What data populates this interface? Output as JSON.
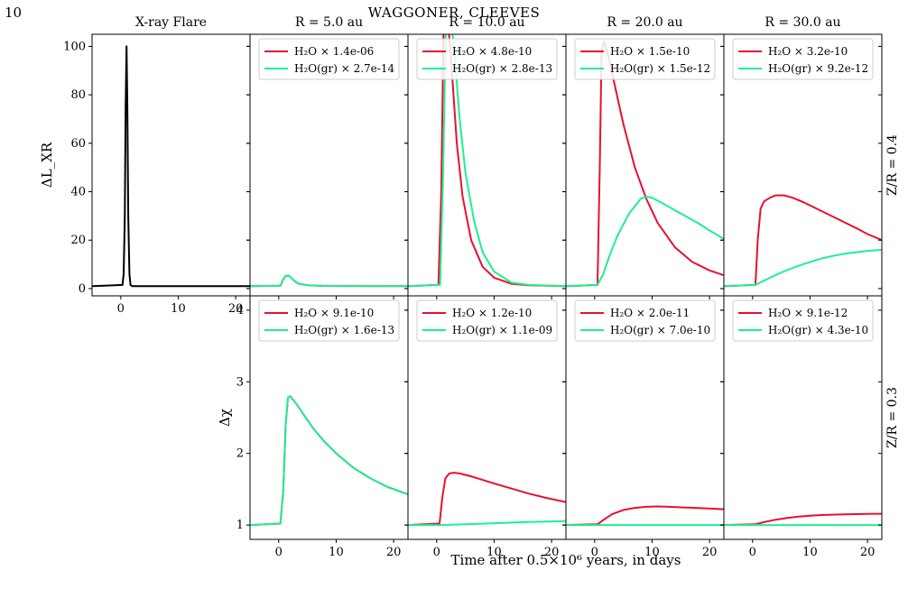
{
  "page": {
    "number": "10",
    "header": "WAGGONER, CLEEVES",
    "xlabel": "Time after 0.5×10⁶ years, in days"
  },
  "colors": {
    "water": "#e8102f",
    "water_grain": "#1ef08f",
    "flare": "#000000"
  },
  "chart_data": [
    {
      "type": "line",
      "panel": "flare",
      "title": "X-ray Flare",
      "ylabel": "ΔL_XR",
      "xlim": [
        -5,
        22.5
      ],
      "ylim": [
        -3,
        105
      ],
      "xticks": [
        0,
        10,
        20
      ],
      "yticks": [
        0,
        20,
        40,
        60,
        80,
        100
      ],
      "series": [
        {
          "x": [
            -5,
            0.3,
            0.5,
            0.7,
            0.85,
            1.0,
            1.15,
            1.3,
            1.5,
            1.7,
            2.0,
            22.5
          ],
          "y": [
            1,
            1.5,
            6,
            30,
            75,
            100,
            75,
            30,
            6,
            1.5,
            1,
            1
          ]
        }
      ]
    },
    {
      "type": "line",
      "panel": "top-1",
      "title": "R = 5.0 au",
      "xlim": [
        -5,
        22.5
      ],
      "ylim": [
        -3,
        105
      ],
      "legend": [
        "H₂O × 1.4e-06",
        "H₂O(gr) × 2.7e-14"
      ],
      "series": [
        {
          "x": [
            -5,
            0.3,
            0.7,
            1.2,
            1.7,
            2.2,
            2.8,
            3.5,
            5,
            8,
            22.5
          ],
          "y": [
            1,
            1.2,
            3.5,
            5.2,
            5.4,
            4.4,
            3.0,
            2.0,
            1.4,
            1.1,
            1.0
          ]
        },
        {
          "x": [
            -5,
            0.3,
            0.7,
            1.2,
            1.7,
            2.2,
            2.8,
            3.5,
            5,
            8,
            22.5
          ],
          "y": [
            1,
            1.2,
            3.5,
            5.2,
            5.4,
            4.4,
            3.0,
            2.0,
            1.4,
            1.1,
            1.0
          ]
        }
      ]
    },
    {
      "type": "line",
      "panel": "top-2",
      "title": "R = 10.0 au",
      "xlim": [
        -5,
        22.5
      ],
      "ylim": [
        -3,
        105
      ],
      "legend": [
        "H₂O × 4.8e-10",
        "H₂O(gr) × 2.8e-13"
      ],
      "series": [
        {
          "x": [
            -5,
            0.3,
            0.8,
            1.2,
            1.8,
            2.5,
            3.5,
            4.5,
            6,
            8,
            10,
            13,
            16,
            22.5
          ],
          "y": [
            1,
            1.5,
            40,
            110,
            115,
            95,
            60,
            38,
            20,
            9,
            4.5,
            2,
            1.4,
            1
          ]
        },
        {
          "x": [
            -5,
            0.6,
            1.1,
            1.6,
            2.2,
            3,
            4,
            5,
            6.5,
            8,
            10,
            13,
            16,
            22.5
          ],
          "y": [
            1,
            1.5,
            45,
            110,
            118,
            100,
            70,
            48,
            28,
            15,
            7,
            2.5,
            1.5,
            1
          ]
        }
      ]
    },
    {
      "type": "line",
      "panel": "top-3",
      "title": "R = 20.0 au",
      "xlim": [
        -5,
        22.5
      ],
      "ylim": [
        -3,
        105
      ],
      "legend": [
        "H₂O × 1.5e-10",
        "H₂O(gr) × 1.5e-12"
      ],
      "series": [
        {
          "x": [
            -5,
            0.5,
            0.9,
            1.2,
            1.7,
            2.5,
            3.5,
            5,
            7,
            9,
            11,
            14,
            17,
            20,
            22.5
          ],
          "y": [
            1,
            1.5,
            50,
            98,
            102,
            95,
            84,
            68,
            50,
            37,
            27,
            17,
            11,
            7.5,
            5.5
          ]
        },
        {
          "x": [
            -5,
            0.5,
            1.5,
            2.5,
            4,
            6,
            8,
            9,
            10,
            12,
            15,
            18,
            20,
            22.5
          ],
          "y": [
            1,
            1.5,
            6,
            13,
            22,
            31,
            37,
            38,
            37.5,
            35,
            31,
            27,
            24,
            20.5
          ]
        }
      ]
    },
    {
      "type": "line",
      "panel": "top-4",
      "title": "R = 30.0 au",
      "xlim": [
        -5,
        22.5
      ],
      "ylim": [
        -3,
        105
      ],
      "row_label": "Z/R = 0.4",
      "legend": [
        "H₂O × 3.2e-10",
        "H₂O(gr) × 9.2e-12"
      ],
      "series": [
        {
          "x": [
            -5,
            0.5,
            0.9,
            1.4,
            2,
            3,
            4,
            5.5,
            7,
            9,
            12,
            15,
            18,
            20,
            22.5
          ],
          "y": [
            1,
            1.5,
            20,
            33,
            36,
            37.5,
            38.5,
            38.5,
            37.5,
            35.5,
            32,
            28.5,
            25,
            22.5,
            20
          ]
        },
        {
          "x": [
            -5,
            0.5,
            2,
            4,
            6,
            8,
            10,
            12,
            14,
            16,
            18,
            20,
            22.5
          ],
          "y": [
            1,
            1.5,
            3.3,
            5.6,
            7.6,
            9.4,
            11,
            12.4,
            13.5,
            14.4,
            15,
            15.6,
            16
          ]
        }
      ]
    },
    {
      "type": "line",
      "panel": "bottom-1",
      "xlim": [
        -5,
        22.5
      ],
      "ylim": [
        0.8,
        4.2
      ],
      "ylabel": "Δχ",
      "xticks": [
        0,
        10,
        20
      ],
      "yticks": [
        1,
        2,
        3,
        4
      ],
      "legend": [
        "H₂O × 9.1e-10",
        "H₂O(gr) × 1.6e-13"
      ],
      "series": [
        {
          "x": [
            -5,
            0.3,
            0.8,
            1.2,
            1.6,
            2,
            3,
            4,
            6,
            8,
            10,
            13,
            16,
            19,
            22.5
          ],
          "y": [
            1,
            1.02,
            1.5,
            2.4,
            2.78,
            2.8,
            2.7,
            2.58,
            2.35,
            2.16,
            2.0,
            1.8,
            1.65,
            1.53,
            1.43
          ]
        },
        {
          "x": [
            -5,
            0.3,
            0.8,
            1.2,
            1.6,
            2,
            3,
            4,
            6,
            8,
            10,
            13,
            16,
            19,
            22.5
          ],
          "y": [
            1,
            1.02,
            1.5,
            2.4,
            2.78,
            2.8,
            2.7,
            2.58,
            2.35,
            2.16,
            2.0,
            1.8,
            1.65,
            1.53,
            1.43
          ]
        }
      ]
    },
    {
      "type": "line",
      "panel": "bottom-2",
      "xlim": [
        -5,
        22.5
      ],
      "ylim": [
        0.8,
        4.2
      ],
      "xticks": [
        0,
        10,
        20
      ],
      "legend": [
        "H₂O × 1.2e-10",
        "H₂O(gr) × 1.1e-09"
      ],
      "series": [
        {
          "x": [
            -5,
            0.5,
            1,
            1.5,
            2.2,
            3,
            4,
            6,
            8,
            10,
            13,
            16,
            19,
            22.5
          ],
          "y": [
            1,
            1.02,
            1.4,
            1.65,
            1.72,
            1.73,
            1.72,
            1.68,
            1.63,
            1.58,
            1.51,
            1.44,
            1.38,
            1.32
          ]
        },
        {
          "x": [
            -5,
            0.5,
            5,
            10,
            15,
            20,
            22.5
          ],
          "y": [
            1,
            1.0,
            1.01,
            1.025,
            1.04,
            1.05,
            1.055
          ]
        }
      ]
    },
    {
      "type": "line",
      "panel": "bottom-3",
      "xlim": [
        -5,
        22.5
      ],
      "ylim": [
        0.8,
        4.2
      ],
      "xticks": [
        0,
        10,
        20
      ],
      "legend": [
        "H₂O × 2.0e-11",
        "H₂O(gr) × 7.0e-10"
      ],
      "series": [
        {
          "x": [
            -5,
            0.5,
            1.5,
            3,
            5,
            7,
            9,
            11,
            13,
            16,
            19,
            22.5
          ],
          "y": [
            1,
            1.01,
            1.07,
            1.15,
            1.21,
            1.24,
            1.255,
            1.26,
            1.255,
            1.245,
            1.235,
            1.22
          ]
        },
        {
          "x": [
            -5,
            22.5
          ],
          "y": [
            1,
            1
          ]
        }
      ]
    },
    {
      "type": "line",
      "panel": "bottom-4",
      "xlim": [
        -5,
        22.5
      ],
      "ylim": [
        0.8,
        4.2
      ],
      "xticks": [
        0,
        10,
        20
      ],
      "row_label": "Z/R = 0.3",
      "legend": [
        "H₂O × 9.1e-12",
        "H₂O(gr) × 4.3e-10"
      ],
      "series": [
        {
          "x": [
            -5,
            0.5,
            2,
            4,
            6,
            8,
            10,
            12,
            14,
            16,
            18,
            20,
            22.5
          ],
          "y": [
            1,
            1.01,
            1.04,
            1.075,
            1.1,
            1.117,
            1.13,
            1.14,
            1.145,
            1.15,
            1.153,
            1.155,
            1.157
          ]
        },
        {
          "x": [
            -5,
            22.5
          ],
          "y": [
            1,
            1
          ]
        }
      ]
    }
  ]
}
